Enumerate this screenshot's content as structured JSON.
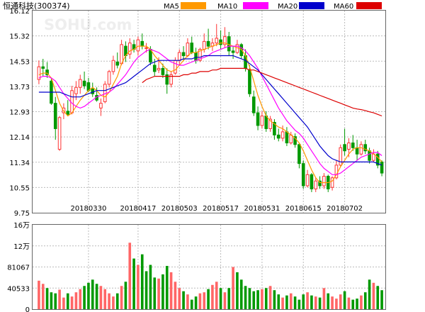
{
  "header": {
    "title": "恒通科技(300374)",
    "watermark": "SOHU.com",
    "legend": [
      {
        "label": "MA5",
        "color": "#ff9900"
      },
      {
        "label": "MA10",
        "color": "#ff00ff"
      },
      {
        "label": "MA20",
        "color": "#0000cc"
      },
      {
        "label": "MA60",
        "color": "#dd0000"
      }
    ]
  },
  "colors": {
    "up": "#ff3333",
    "down": "#009900",
    "grid": "#bbbbbb",
    "axis": "#666666",
    "text": "#000000"
  },
  "chart_data": [
    {
      "type": "candlestick",
      "title": "恒通科技(300374)",
      "ylim": [
        9.75,
        16.12
      ],
      "y_ticks": [
        "16.12",
        "15.32",
        "14.53",
        "13.73",
        "12.93",
        "12.14",
        "11.34",
        "10.55",
        "9.75"
      ],
      "x_tick_labels": [
        "20180330",
        "20180417",
        "20180503",
        "20180517",
        "20180531",
        "20180615",
        "20180702"
      ],
      "x_tick_index": [
        12,
        24,
        34,
        44,
        54,
        64,
        74
      ],
      "grid": true,
      "candles": [
        {
          "o": 13.95,
          "h": 14.55,
          "l": 13.8,
          "c": 14.35
        },
        {
          "o": 14.35,
          "h": 14.6,
          "l": 14.05,
          "c": 14.3
        },
        {
          "o": 14.25,
          "h": 14.5,
          "l": 14.0,
          "c": 14.1
        },
        {
          "o": 13.9,
          "h": 14.0,
          "l": 13.15,
          "c": 13.2
        },
        {
          "o": 13.2,
          "h": 13.4,
          "l": 12.05,
          "c": 12.4
        },
        {
          "o": 11.75,
          "h": 12.8,
          "l": 11.7,
          "c": 12.75
        },
        {
          "o": 12.9,
          "h": 13.2,
          "l": 12.7,
          "c": 13.05
        },
        {
          "o": 12.95,
          "h": 13.3,
          "l": 12.8,
          "c": 12.85
        },
        {
          "o": 12.9,
          "h": 13.75,
          "l": 12.85,
          "c": 13.6
        },
        {
          "o": 13.5,
          "h": 13.9,
          "l": 13.3,
          "c": 13.7
        },
        {
          "o": 13.7,
          "h": 14.1,
          "l": 13.5,
          "c": 13.95
        },
        {
          "o": 13.9,
          "h": 14.2,
          "l": 13.65,
          "c": 13.75
        },
        {
          "o": 13.85,
          "h": 14.0,
          "l": 13.55,
          "c": 13.6
        },
        {
          "o": 13.65,
          "h": 13.85,
          "l": 13.4,
          "c": 13.5
        },
        {
          "o": 13.45,
          "h": 13.7,
          "l": 13.25,
          "c": 13.3
        },
        {
          "o": 13.05,
          "h": 13.35,
          "l": 12.8,
          "c": 13.2
        },
        {
          "o": 13.25,
          "h": 13.9,
          "l": 13.2,
          "c": 13.8
        },
        {
          "o": 13.8,
          "h": 14.25,
          "l": 13.7,
          "c": 14.2
        },
        {
          "o": 14.2,
          "h": 14.7,
          "l": 14.1,
          "c": 14.55
        },
        {
          "o": 14.5,
          "h": 14.8,
          "l": 14.3,
          "c": 14.4
        },
        {
          "o": 14.45,
          "h": 15.2,
          "l": 14.4,
          "c": 15.05
        },
        {
          "o": 15.0,
          "h": 15.15,
          "l": 14.5,
          "c": 14.7
        },
        {
          "o": 14.75,
          "h": 15.25,
          "l": 14.6,
          "c": 15.1
        },
        {
          "o": 15.05,
          "h": 15.2,
          "l": 14.8,
          "c": 14.9
        },
        {
          "o": 14.85,
          "h": 15.3,
          "l": 14.7,
          "c": 15.2
        },
        {
          "o": 15.15,
          "h": 15.4,
          "l": 14.9,
          "c": 15.0
        },
        {
          "o": 14.95,
          "h": 15.1,
          "l": 14.8,
          "c": 14.95
        },
        {
          "o": 14.9,
          "h": 15.0,
          "l": 14.4,
          "c": 14.5
        },
        {
          "o": 14.4,
          "h": 14.6,
          "l": 14.05,
          "c": 14.2
        },
        {
          "o": 14.25,
          "h": 14.65,
          "l": 14.15,
          "c": 14.3
        },
        {
          "o": 14.3,
          "h": 14.45,
          "l": 14.0,
          "c": 14.1
        },
        {
          "o": 14.1,
          "h": 14.3,
          "l": 13.5,
          "c": 13.8
        },
        {
          "o": 13.8,
          "h": 14.2,
          "l": 13.7,
          "c": 14.1
        },
        {
          "o": 14.15,
          "h": 14.65,
          "l": 14.1,
          "c": 14.55
        },
        {
          "o": 14.55,
          "h": 14.9,
          "l": 14.4,
          "c": 14.8
        },
        {
          "o": 14.8,
          "h": 15.0,
          "l": 14.55,
          "c": 14.7
        },
        {
          "o": 14.7,
          "h": 15.25,
          "l": 14.65,
          "c": 15.1
        },
        {
          "o": 15.1,
          "h": 15.3,
          "l": 14.75,
          "c": 14.8
        },
        {
          "o": 14.8,
          "h": 14.95,
          "l": 14.45,
          "c": 14.55
        },
        {
          "o": 14.55,
          "h": 14.95,
          "l": 14.5,
          "c": 14.9
        },
        {
          "o": 14.9,
          "h": 15.4,
          "l": 14.8,
          "c": 15.15
        },
        {
          "o": 15.15,
          "h": 15.55,
          "l": 14.9,
          "c": 15.0
        },
        {
          "o": 15.0,
          "h": 15.25,
          "l": 14.85,
          "c": 15.1
        },
        {
          "o": 15.1,
          "h": 15.7,
          "l": 15.0,
          "c": 15.25
        },
        {
          "o": 15.2,
          "h": 15.5,
          "l": 14.9,
          "c": 15.05
        },
        {
          "o": 15.05,
          "h": 15.6,
          "l": 14.95,
          "c": 15.3
        },
        {
          "o": 15.3,
          "h": 15.45,
          "l": 14.7,
          "c": 14.85
        },
        {
          "o": 14.85,
          "h": 15.0,
          "l": 14.6,
          "c": 14.8
        },
        {
          "o": 14.8,
          "h": 15.2,
          "l": 14.75,
          "c": 15.05
        },
        {
          "o": 15.05,
          "h": 15.1,
          "l": 14.6,
          "c": 14.7
        },
        {
          "o": 14.7,
          "h": 14.9,
          "l": 14.2,
          "c": 14.3
        },
        {
          "o": 14.25,
          "h": 14.4,
          "l": 13.4,
          "c": 13.5
        },
        {
          "o": 13.4,
          "h": 13.6,
          "l": 12.8,
          "c": 12.9
        },
        {
          "o": 12.9,
          "h": 13.1,
          "l": 12.35,
          "c": 12.5
        },
        {
          "o": 12.5,
          "h": 12.95,
          "l": 12.4,
          "c": 12.8
        },
        {
          "o": 12.8,
          "h": 12.95,
          "l": 12.3,
          "c": 12.4
        },
        {
          "o": 12.4,
          "h": 12.8,
          "l": 12.3,
          "c": 12.7
        },
        {
          "o": 12.6,
          "h": 12.7,
          "l": 12.05,
          "c": 12.2
        },
        {
          "o": 12.2,
          "h": 12.4,
          "l": 12.0,
          "c": 12.1
        },
        {
          "o": 12.1,
          "h": 12.5,
          "l": 12.0,
          "c": 12.3
        },
        {
          "o": 12.3,
          "h": 12.45,
          "l": 11.85,
          "c": 11.95
        },
        {
          "o": 11.95,
          "h": 12.3,
          "l": 11.9,
          "c": 12.2
        },
        {
          "o": 12.15,
          "h": 12.25,
          "l": 11.8,
          "c": 11.9
        },
        {
          "o": 11.9,
          "h": 11.95,
          "l": 11.15,
          "c": 11.3
        },
        {
          "o": 11.3,
          "h": 11.4,
          "l": 10.5,
          "c": 10.6
        },
        {
          "o": 10.6,
          "h": 11.1,
          "l": 10.55,
          "c": 10.95
        },
        {
          "o": 10.95,
          "h": 11.0,
          "l": 10.4,
          "c": 10.5
        },
        {
          "o": 10.5,
          "h": 10.85,
          "l": 10.4,
          "c": 10.75
        },
        {
          "o": 10.75,
          "h": 10.9,
          "l": 10.5,
          "c": 10.6
        },
        {
          "o": 10.6,
          "h": 11.0,
          "l": 10.5,
          "c": 10.9
        },
        {
          "o": 10.9,
          "h": 10.95,
          "l": 10.4,
          "c": 10.5
        },
        {
          "o": 10.55,
          "h": 10.9,
          "l": 10.45,
          "c": 10.85
        },
        {
          "o": 10.85,
          "h": 11.4,
          "l": 10.8,
          "c": 11.25
        },
        {
          "o": 11.25,
          "h": 11.9,
          "l": 11.2,
          "c": 11.8
        },
        {
          "o": 11.9,
          "h": 12.4,
          "l": 11.55,
          "c": 11.7
        },
        {
          "o": 11.75,
          "h": 12.1,
          "l": 11.5,
          "c": 11.95
        },
        {
          "o": 11.95,
          "h": 12.2,
          "l": 11.7,
          "c": 11.8
        },
        {
          "o": 11.8,
          "h": 12.05,
          "l": 11.4,
          "c": 11.6
        },
        {
          "o": 11.6,
          "h": 12.0,
          "l": 11.55,
          "c": 11.9
        },
        {
          "o": 11.9,
          "h": 12.05,
          "l": 11.6,
          "c": 11.7
        },
        {
          "o": 11.7,
          "h": 11.8,
          "l": 11.3,
          "c": 11.4
        },
        {
          "o": 11.4,
          "h": 11.75,
          "l": 11.35,
          "c": 11.6
        },
        {
          "o": 11.6,
          "h": 11.7,
          "l": 11.15,
          "c": 11.25
        },
        {
          "o": 11.35,
          "h": 11.4,
          "l": 10.9,
          "c": 11.0
        }
      ],
      "ma": [
        {
          "name": "MA5",
          "color": "#ff9900",
          "values": [
            14.1,
            14.15,
            14.15,
            14.0,
            13.6,
            13.2,
            12.95,
            12.8,
            12.9,
            13.1,
            13.3,
            13.45,
            13.6,
            13.7,
            13.6,
            13.45,
            13.4,
            13.55,
            13.8,
            14.05,
            14.45,
            14.7,
            14.85,
            14.9,
            15.0,
            15.0,
            15.0,
            14.9,
            14.7,
            14.55,
            14.4,
            14.25,
            14.2,
            14.25,
            14.4,
            14.55,
            14.7,
            14.8,
            14.8,
            14.85,
            14.9,
            14.95,
            15.0,
            15.05,
            15.1,
            15.1,
            15.05,
            15.0,
            14.95,
            14.9,
            14.7,
            14.35,
            13.9,
            13.45,
            13.1,
            12.8,
            12.65,
            12.55,
            12.45,
            12.4,
            12.3,
            12.2,
            12.1,
            11.95,
            11.7,
            11.4,
            11.1,
            10.85,
            10.7,
            10.7,
            10.7,
            10.75,
            10.95,
            11.2,
            11.4,
            11.6,
            11.75,
            11.8,
            11.8,
            11.75,
            11.7,
            11.6,
            11.5,
            11.35
          ]
        },
        {
          "name": "MA10",
          "color": "#ff00ff",
          "values": [
            14.0,
            14.05,
            14.05,
            14.0,
            13.9,
            13.7,
            13.5,
            13.35,
            13.2,
            13.1,
            13.05,
            13.1,
            13.2,
            13.3,
            13.4,
            13.45,
            13.5,
            13.55,
            13.65,
            13.8,
            13.95,
            14.1,
            14.3,
            14.5,
            14.65,
            14.75,
            14.85,
            14.9,
            14.85,
            14.8,
            14.7,
            14.6,
            14.5,
            14.45,
            14.4,
            14.4,
            14.45,
            14.5,
            14.55,
            14.6,
            14.65,
            14.7,
            14.8,
            14.85,
            14.9,
            14.95,
            15.0,
            15.0,
            15.0,
            14.95,
            14.85,
            14.7,
            14.5,
            14.3,
            14.05,
            13.8,
            13.55,
            13.3,
            13.05,
            12.85,
            12.65,
            12.5,
            12.35,
            12.25,
            12.1,
            11.9,
            11.7,
            11.5,
            11.3,
            11.15,
            11.05,
            10.95,
            10.95,
            11.0,
            11.1,
            11.2,
            11.3,
            11.4,
            11.5,
            11.55,
            11.6,
            11.65,
            11.65,
            11.55
          ]
        },
        {
          "name": "MA20",
          "color": "#0000cc",
          "values": [
            13.55,
            13.55,
            13.55,
            13.55,
            13.55,
            13.55,
            13.5,
            13.45,
            13.4,
            13.4,
            13.4,
            13.45,
            13.5,
            13.55,
            13.6,
            13.6,
            13.6,
            13.65,
            13.7,
            13.75,
            13.8,
            13.85,
            13.95,
            14.05,
            14.15,
            14.25,
            14.35,
            14.45,
            14.5,
            14.55,
            14.55,
            14.55,
            14.55,
            14.55,
            14.55,
            14.6,
            14.6,
            14.6,
            14.65,
            14.65,
            14.7,
            14.7,
            14.7,
            14.7,
            14.7,
            14.7,
            14.7,
            14.7,
            14.65,
            14.6,
            14.55,
            14.45,
            14.35,
            14.25,
            14.1,
            13.95,
            13.8,
            13.65,
            13.5,
            13.35,
            13.2,
            13.05,
            12.9,
            12.75,
            12.6,
            12.45,
            12.25,
            12.05,
            11.85,
            11.7,
            11.55,
            11.45,
            11.4,
            11.35,
            11.35,
            11.35,
            11.35,
            11.35,
            11.35,
            11.35,
            11.35,
            11.35,
            11.3,
            11.25
          ]
        },
        {
          "name": "MA60",
          "color": "#dd0000",
          "values": [
            null,
            null,
            null,
            null,
            null,
            null,
            null,
            null,
            null,
            null,
            null,
            null,
            null,
            null,
            null,
            null,
            null,
            null,
            null,
            null,
            null,
            null,
            null,
            null,
            null,
            13.85,
            13.95,
            14.0,
            14.05,
            14.05,
            14.05,
            14.05,
            14.05,
            14.05,
            14.05,
            14.1,
            14.1,
            14.15,
            14.15,
            14.2,
            14.2,
            14.2,
            14.25,
            14.25,
            14.3,
            14.3,
            14.3,
            14.3,
            14.3,
            14.3,
            14.3,
            14.25,
            14.25,
            14.2,
            14.15,
            14.1,
            14.05,
            14.0,
            13.95,
            13.9,
            13.85,
            13.8,
            13.75,
            13.7,
            13.65,
            13.6,
            13.55,
            13.5,
            13.45,
            13.4,
            13.35,
            13.3,
            13.25,
            13.2,
            13.15,
            13.1,
            13.05,
            13.02,
            13.0,
            12.97,
            12.93,
            12.9,
            12.85,
            12.8
          ]
        }
      ]
    },
    {
      "type": "bar",
      "title": "",
      "ylim": [
        0,
        160000
      ],
      "y_ticks": [
        "16万",
        "12万",
        "81067",
        "40533",
        "0"
      ],
      "values": [
        54000,
        48000,
        40000,
        32000,
        30000,
        37000,
        22000,
        30000,
        24000,
        32000,
        38000,
        44000,
        50000,
        56000,
        48000,
        44000,
        38000,
        30000,
        24000,
        30000,
        44000,
        52000,
        126000,
        96000,
        84000,
        104000,
        72000,
        84000,
        60000,
        58000,
        66000,
        82000,
        70000,
        52000,
        40000,
        34000,
        28000,
        18000,
        24000,
        30000,
        32000,
        38000,
        46000,
        52000,
        40000,
        32000,
        40000,
        80000,
        70000,
        56000,
        44000,
        40000,
        34000,
        36000,
        38000,
        40000,
        44000,
        36000,
        28000,
        22000,
        26000,
        30000,
        24000,
        18000,
        28000,
        32000,
        26000,
        24000,
        22000,
        40000,
        30000,
        24000,
        20000,
        28000,
        34000,
        22000,
        18000,
        20000,
        26000,
        32000,
        56000,
        50000,
        44000,
        36000
      ],
      "up": [
        true,
        true,
        false,
        false,
        false,
        true,
        true,
        false,
        true,
        true,
        true,
        false,
        false,
        false,
        false,
        true,
        true,
        true,
        true,
        false,
        true,
        false,
        true,
        false,
        true,
        false,
        false,
        false,
        false,
        true,
        false,
        false,
        true,
        true,
        true,
        false,
        true,
        false,
        false,
        true,
        true,
        false,
        true,
        true,
        false,
        true,
        false,
        true,
        false,
        false,
        false,
        false,
        false,
        false,
        true,
        false,
        true,
        false,
        false,
        true,
        false,
        true,
        false,
        false,
        false,
        true,
        false,
        true,
        false,
        true,
        false,
        true,
        true,
        true,
        false,
        true,
        false,
        false,
        true,
        false,
        false,
        true,
        false,
        false
      ]
    }
  ]
}
